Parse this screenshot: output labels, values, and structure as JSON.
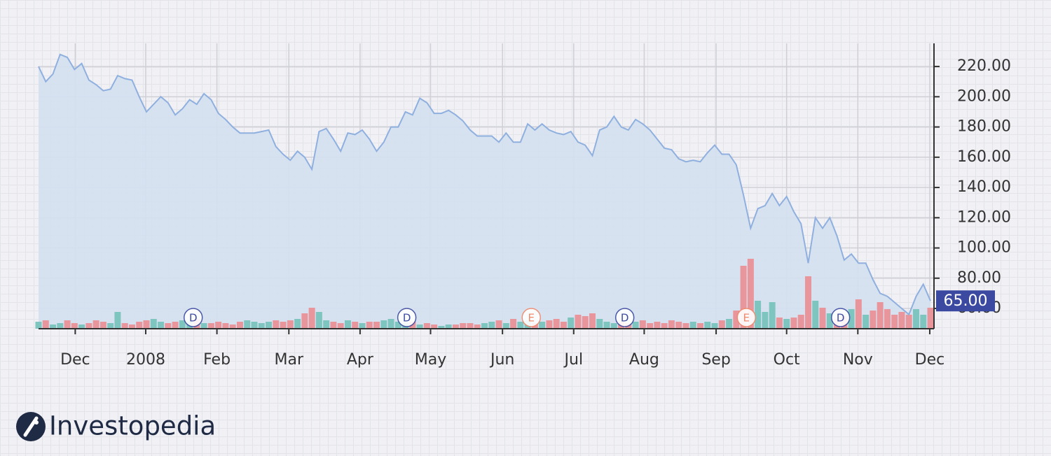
{
  "chart_data": {
    "type": "line",
    "brand": "Investopedia",
    "values": [
      220,
      210,
      215,
      228,
      226,
      218,
      222,
      211,
      208,
      204,
      205,
      214,
      212,
      211,
      200,
      190,
      195,
      200,
      196,
      188,
      192,
      198,
      195,
      202,
      198,
      189,
      185,
      180,
      176,
      176,
      176,
      177,
      178,
      167,
      162,
      158,
      164,
      160,
      152,
      177,
      179,
      172,
      164,
      176,
      175,
      178,
      172,
      164,
      170,
      180,
      180,
      190,
      188,
      199,
      196,
      189,
      189,
      191,
      188,
      184,
      178,
      174,
      174,
      174,
      170,
      176,
      170,
      170,
      182,
      178,
      182,
      178,
      176,
      175,
      177,
      170,
      168,
      161,
      178,
      180,
      187,
      180,
      178,
      185,
      182,
      178,
      172,
      166,
      165,
      159,
      157,
      158,
      157,
      163,
      168,
      162,
      162,
      155,
      135,
      113,
      126,
      128,
      136,
      128,
      134,
      124,
      116,
      90,
      120,
      113,
      120,
      108,
      92,
      96,
      90,
      90,
      79,
      70,
      68,
      64,
      60,
      56,
      68,
      76,
      65
    ],
    "color": "#8fb0df",
    "area_color": "#d4e0f1",
    "volume": {
      "axis": "y2",
      "up_color": "#7fc5bf",
      "down_color": "#e9959c",
      "values": [
        10,
        12,
        6,
        8,
        12,
        8,
        6,
        8,
        12,
        10,
        8,
        24,
        8,
        6,
        10,
        12,
        14,
        10,
        8,
        10,
        12,
        10,
        14,
        8,
        8,
        10,
        8,
        6,
        10,
        12,
        10,
        8,
        10,
        12,
        10,
        12,
        14,
        22,
        30,
        24,
        12,
        10,
        8,
        12,
        10,
        8,
        10,
        10,
        12,
        14,
        10,
        8,
        10,
        6,
        8,
        6,
        4,
        6,
        6,
        8,
        8,
        6,
        8,
        10,
        12,
        8,
        14,
        10,
        12,
        8,
        10,
        12,
        14,
        10,
        16,
        20,
        18,
        22,
        14,
        10,
        8,
        10,
        8,
        10,
        12,
        8,
        10,
        8,
        12,
        10,
        8,
        10,
        8,
        10,
        8,
        12,
        14,
        26,
        90,
        100,
        40,
        24,
        38,
        16,
        14,
        16,
        20,
        75,
        40,
        30,
        22,
        14,
        18,
        28,
        42,
        20,
        26,
        38,
        28,
        20,
        24,
        20,
        28,
        20,
        30
      ]
    },
    "y2lim": [
      0,
      408
    ],
    "xlim": [
      0,
      124
    ],
    "xticks": [
      {
        "value": 5.1,
        "label": "Dec"
      },
      {
        "value": 14.9,
        "label": "2008"
      },
      {
        "value": 24.8,
        "label": "Feb"
      },
      {
        "value": 34.8,
        "label": "Mar"
      },
      {
        "value": 44.7,
        "label": "Apr"
      },
      {
        "value": 54.5,
        "label": "May"
      },
      {
        "value": 64.5,
        "label": "Jun"
      },
      {
        "value": 74.4,
        "label": "Jul"
      },
      {
        "value": 84.2,
        "label": "Aug"
      },
      {
        "value": 94.2,
        "label": "Sep"
      },
      {
        "value": 104,
        "label": "Oct"
      },
      {
        "value": 113.9,
        "label": "Nov"
      },
      {
        "value": 123.9,
        "label": "Dec"
      }
    ],
    "ylim": [
      46.6,
      235.3
    ],
    "yticks": [
      {
        "value": 60,
        "label": "60.00"
      },
      {
        "value": 80,
        "label": "80.00"
      },
      {
        "value": 100,
        "label": "100.00"
      },
      {
        "value": 120,
        "label": "120.00"
      },
      {
        "value": 140,
        "label": "140.00"
      },
      {
        "value": 160,
        "label": "160.00"
      },
      {
        "value": 180,
        "label": "180.00"
      },
      {
        "value": 200,
        "label": "200.00"
      },
      {
        "value": 220,
        "label": "220.00"
      }
    ],
    "grid": true,
    "events": [
      {
        "x": 21.5,
        "label": "D",
        "color": "#3b4aa0"
      },
      {
        "x": 51.2,
        "label": "D",
        "color": "#3b4aa0"
      },
      {
        "x": 68.5,
        "label": "E",
        "color": "#ef8a6c"
      },
      {
        "x": 81.5,
        "label": "D",
        "color": "#3b4aa0"
      },
      {
        "x": 98.4,
        "label": "E",
        "color": "#ef8a6c"
      },
      {
        "x": 111.5,
        "label": "D",
        "color": "#3b4aa0"
      }
    ],
    "last_label": "65.00",
    "last_color": "#3b4aa0"
  }
}
